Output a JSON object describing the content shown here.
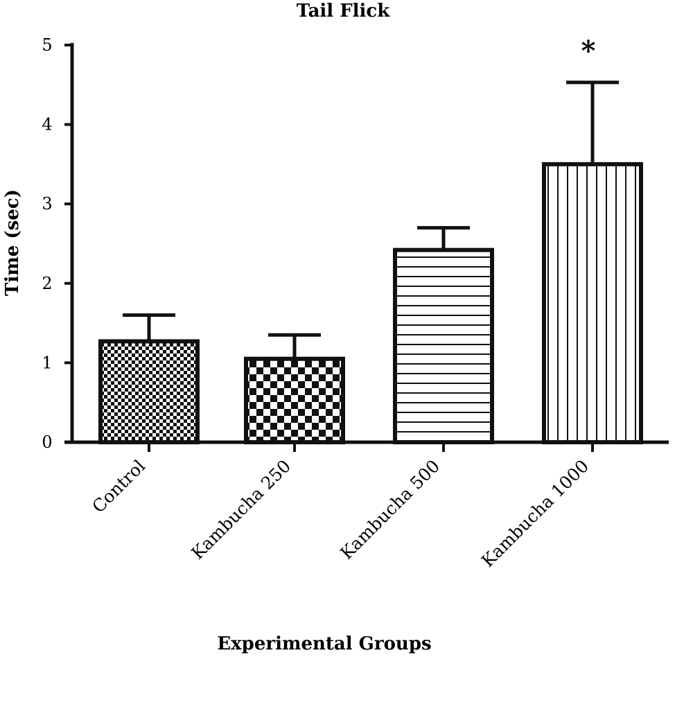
{
  "chart_data": {
    "type": "bar",
    "title": "Tail Flick",
    "xlabel": "Experimental Groups",
    "ylabel": "Time (sec)",
    "ylim": [
      0,
      5
    ],
    "yticks": [
      "0",
      "1",
      "2",
      "3",
      "4",
      "5"
    ],
    "categories": [
      "Control",
      "Kambucha 250",
      "Kambucha 500",
      "Kambucha 1000"
    ],
    "values": [
      1.27,
      1.05,
      2.42,
      3.5
    ],
    "error_upper": [
      0.33,
      0.3,
      0.28,
      1.03
    ],
    "patterns": [
      "fine-checker",
      "coarse-checker",
      "horizontal-lines",
      "vertical-lines"
    ],
    "annotations": [
      {
        "category": "Kambucha 1000",
        "text": "*"
      }
    ],
    "grid": false,
    "legend": "none",
    "colors": {
      "stroke": "#111111",
      "fill": "#ffffff"
    }
  }
}
